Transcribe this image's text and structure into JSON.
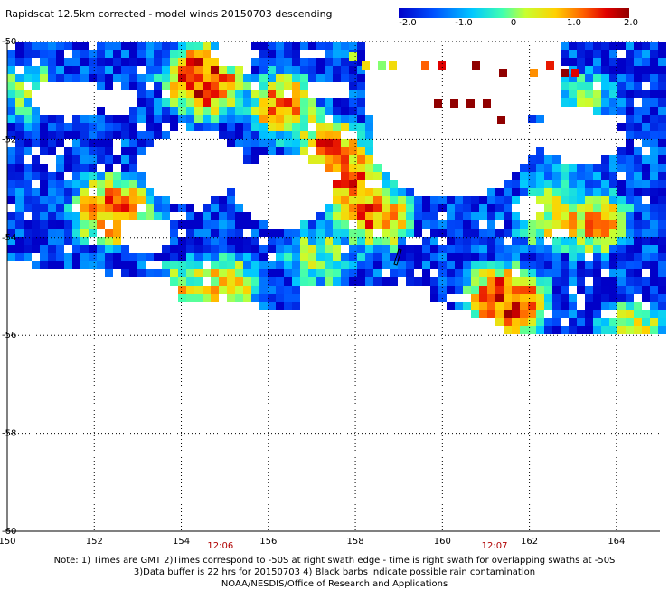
{
  "title": "Rapidscat 12.5km corrected - model winds 20150703 descending",
  "colorbar": {
    "labels": [
      "-2.0",
      "-1.0",
      "0",
      "1.0",
      "2.0"
    ],
    "values": [
      -2.0,
      -1.0,
      0.0,
      1.0,
      2.0
    ],
    "colors": [
      "#0000c8",
      "#0050ff",
      "#00c8ff",
      "#40ffb0",
      "#c8ff30",
      "#ffd000",
      "#ff6000",
      "#e00000",
      "#900000"
    ]
  },
  "chart_data": {
    "type": "heatmap",
    "title": "Rapidscat 12.5km corrected - model winds 20150703 descending",
    "xlabel": "",
    "ylabel": "",
    "xlim": [
      150,
      165
    ],
    "ylim": [
      -60,
      -50
    ],
    "x_ticks": [
      "150",
      "152",
      "154",
      "156",
      "158",
      "160",
      "162",
      "164"
    ],
    "y_ticks": [
      "-50",
      "-52",
      "-54",
      "-56",
      "-58",
      "-60"
    ],
    "grid": true,
    "value_range": [
      -2.0,
      2.0
    ],
    "time_labels": [
      {
        "label": "12:06",
        "lon": 154.9
      },
      {
        "label": "12:07",
        "lon": 161.2
      }
    ],
    "blobs": [
      {
        "lon": 150.5,
        "lat": -51.0,
        "value": 0.1
      },
      {
        "lon": 152.3,
        "lat": -53.4,
        "value": 1.2
      },
      {
        "lon": 152.5,
        "lat": -53.5,
        "value": 2.0
      },
      {
        "lon": 154.4,
        "lat": -50.7,
        "value": 2.0
      },
      {
        "lon": 154.6,
        "lat": -50.9,
        "value": 2.0
      },
      {
        "lon": 156.3,
        "lat": -51.3,
        "value": 1.8
      },
      {
        "lon": 157.4,
        "lat": -52.2,
        "value": 2.0
      },
      {
        "lon": 157.9,
        "lat": -52.9,
        "value": 2.0
      },
      {
        "lon": 158.5,
        "lat": -53.6,
        "value": 2.0
      },
      {
        "lon": 157.2,
        "lat": -54.4,
        "value": 0.4
      },
      {
        "lon": 155.0,
        "lat": -55.0,
        "value": 1.2
      },
      {
        "lon": 154.0,
        "lat": -55.2,
        "value": 1.0
      },
      {
        "lon": 161.3,
        "lat": -55.2,
        "value": 2.0
      },
      {
        "lon": 161.7,
        "lat": -55.4,
        "value": 2.0
      },
      {
        "lon": 162.5,
        "lat": -53.6,
        "value": 1.0
      },
      {
        "lon": 163.5,
        "lat": -53.7,
        "value": 1.6
      },
      {
        "lon": 164.4,
        "lat": -56.0,
        "value": 1.3
      },
      {
        "lon": 163.3,
        "lat": -51.2,
        "value": 0.0
      },
      {
        "lon": 162.8,
        "lat": -52.6,
        "value": -0.5
      }
    ]
  },
  "notes": [
    "Note: 1) Times are GMT 2)Times correspond to -50S at right swath edge - time is right swath for overlapping swaths at -50S",
    "3)Data buffer is 22 hrs for 20150703 4) Black barbs indicate possible rain contamination",
    "NOAA/NESDIS/Office of Research and Applications"
  ]
}
